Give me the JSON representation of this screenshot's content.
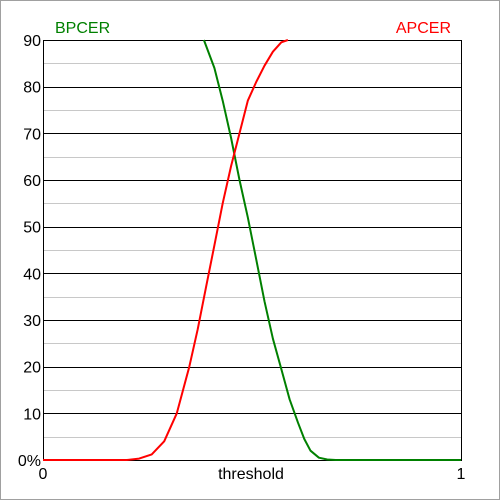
{
  "chart_data": {
    "type": "line",
    "xlabel": "threshold",
    "ylabel": "",
    "xlim": [
      0,
      1
    ],
    "ylim": [
      0,
      90
    ],
    "x_tick_labels": [
      {
        "value": 0,
        "label": "0"
      },
      {
        "value": 1,
        "label": "1"
      }
    ],
    "y_tick_labels": [
      {
        "value": 0,
        "label": "0%"
      },
      {
        "value": 10,
        "label": "10"
      },
      {
        "value": 20,
        "label": "20"
      },
      {
        "value": 30,
        "label": "30"
      },
      {
        "value": 40,
        "label": "40"
      },
      {
        "value": 50,
        "label": "50"
      },
      {
        "value": 60,
        "label": "60"
      },
      {
        "value": 70,
        "label": "70"
      },
      {
        "value": 80,
        "label": "80"
      },
      {
        "value": 90,
        "label": "90"
      }
    ],
    "major_grid_step": 10,
    "minor_grid_step": 5,
    "grid": true,
    "series": [
      {
        "name": "BPCER",
        "color": "#008000",
        "legend_position": "top-left",
        "x": [
          0.385,
          0.41,
          0.43,
          0.45,
          0.47,
          0.49,
          0.51,
          0.53,
          0.55,
          0.57,
          0.59,
          0.61,
          0.625,
          0.64,
          0.66,
          0.68,
          0.7,
          0.75,
          1.0
        ],
        "y": [
          90,
          84,
          77,
          69,
          60,
          52,
          43,
          34,
          26,
          19.5,
          13,
          8,
          4.5,
          2,
          0.5,
          0.1,
          0,
          0,
          0
        ]
      },
      {
        "name": "APCER",
        "color": "#ff0000",
        "legend_position": "top-right",
        "x": [
          0.0,
          0.2,
          0.23,
          0.26,
          0.29,
          0.32,
          0.35,
          0.37,
          0.39,
          0.41,
          0.43,
          0.45,
          0.47,
          0.49,
          0.51,
          0.53,
          0.55,
          0.57,
          0.586
        ],
        "y": [
          0,
          0,
          0.3,
          1.2,
          4,
          10,
          20,
          28,
          37,
          46,
          55,
          63,
          70,
          77,
          81,
          84.5,
          87.5,
          89.5,
          90
        ]
      }
    ]
  }
}
